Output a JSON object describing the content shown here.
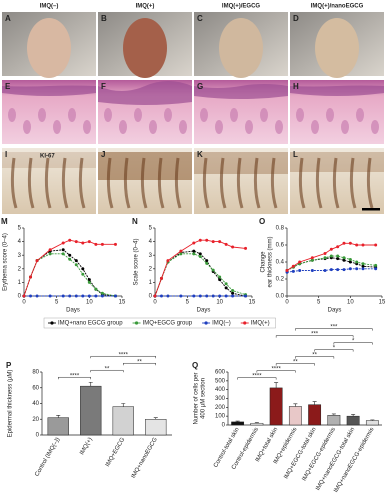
{
  "figure": {
    "column_labels": [
      "IMQ(–)",
      "IMQ(+)",
      "IMQ(+)/EGCG",
      "IMQ(+)/nanoEGCG"
    ],
    "panels": [
      "A",
      "B",
      "C",
      "D",
      "E",
      "F",
      "G",
      "H",
      "I",
      "J",
      "K",
      "L"
    ],
    "stain_label": "KI-67"
  },
  "chart_data": [
    {
      "type": "line",
      "panel": "M",
      "ylabel": [
        "Erythema score (0–4)"
      ],
      "xlabel": "Days",
      "x": [
        0,
        1,
        2,
        4,
        6,
        7,
        8,
        9,
        10,
        11,
        12,
        14
      ],
      "xlim": [
        0,
        15
      ],
      "xticks": [
        0,
        5,
        10,
        15
      ],
      "ylim": [
        0,
        5
      ],
      "yticks": [
        0,
        1,
        2,
        3,
        4,
        5
      ],
      "series": [
        {
          "name": "IMQ+nano EGCG group",
          "color": "#000000",
          "values": [
            0,
            1.4,
            2.6,
            3.3,
            3.4,
            3.0,
            2.6,
            2.0,
            1.2,
            0.5,
            0.1,
            0
          ]
        },
        {
          "name": "IMQ+EGCG group",
          "color": "#3a9a3a",
          "values": [
            0,
            1.4,
            2.6,
            3.1,
            3.1,
            2.7,
            2.3,
            1.6,
            1.0,
            0.5,
            0.2,
            0
          ]
        },
        {
          "name": "IMQ(–)",
          "color": "#1f3fbf",
          "values": [
            0,
            0,
            0,
            0,
            0,
            0,
            0,
            0,
            0,
            0,
            0,
            0
          ]
        },
        {
          "name": "IMQ(+)",
          "color": "#e8202a",
          "values": [
            0,
            1.4,
            2.6,
            3.4,
            3.9,
            4.1,
            4.0,
            3.9,
            4.0,
            3.8,
            3.8,
            3.8
          ]
        }
      ]
    },
    {
      "type": "line",
      "panel": "N",
      "ylabel": [
        "Scale score (0–4)"
      ],
      "xlabel": "Days",
      "x": [
        0,
        1,
        2,
        4,
        6,
        7,
        8,
        9,
        10,
        11,
        12,
        14
      ],
      "xlim": [
        0,
        15
      ],
      "xticks": [
        0,
        5,
        10,
        15
      ],
      "ylim": [
        0,
        5
      ],
      "yticks": [
        0,
        1,
        2,
        3,
        4,
        5
      ],
      "series": [
        {
          "color": "#000000",
          "values": [
            0,
            1.3,
            2.5,
            3.2,
            3.3,
            3.1,
            2.6,
            1.8,
            1.2,
            0.6,
            0.2,
            0
          ]
        },
        {
          "color": "#3a9a3a",
          "values": [
            0,
            1.3,
            2.5,
            3.1,
            3.1,
            2.9,
            2.4,
            1.9,
            1.4,
            0.9,
            0.4,
            0.1
          ]
        },
        {
          "color": "#1f3fbf",
          "values": [
            0,
            0,
            0,
            0,
            0,
            0,
            0,
            0,
            0,
            0,
            0,
            0
          ]
        },
        {
          "color": "#e8202a",
          "values": [
            0,
            1.3,
            2.6,
            3.3,
            3.9,
            4.1,
            4.1,
            4.0,
            4.0,
            3.8,
            3.6,
            3.5
          ]
        }
      ]
    },
    {
      "type": "line",
      "panel": "O",
      "ylabel": [
        "Change",
        "ear thickness (mm)"
      ],
      "xlabel": "Days",
      "x": [
        0,
        1,
        2,
        4,
        6,
        7,
        8,
        9,
        10,
        11,
        12,
        14
      ],
      "xlim": [
        0,
        15
      ],
      "xticks": [
        0,
        5,
        10,
        15
      ],
      "ylim": [
        0,
        0.8
      ],
      "yticks": [
        {
          "value": 0,
          "label": "0.0"
        },
        0.2,
        0.4,
        0.6,
        0.8
      ],
      "series": [
        {
          "color": "#000000",
          "values": [
            0.3,
            0.34,
            0.38,
            0.42,
            0.44,
            0.45,
            0.44,
            0.42,
            0.4,
            0.38,
            0.35,
            0.34
          ]
        },
        {
          "color": "#3a9a3a",
          "values": [
            0.3,
            0.34,
            0.38,
            0.42,
            0.45,
            0.47,
            0.47,
            0.45,
            0.43,
            0.4,
            0.38,
            0.36
          ]
        },
        {
          "color": "#1f3fbf",
          "values": [
            0.28,
            0.29,
            0.3,
            0.3,
            0.3,
            0.31,
            0.31,
            0.31,
            0.32,
            0.32,
            0.32,
            0.32
          ]
        },
        {
          "color": "#e8202a",
          "values": [
            0.3,
            0.35,
            0.4,
            0.45,
            0.5,
            0.55,
            0.58,
            0.62,
            0.62,
            0.6,
            0.6,
            0.6
          ]
        }
      ]
    },
    {
      "type": "bar",
      "panel": "P",
      "ylabel": [
        "Epidermal thickness (µM)"
      ],
      "categories": [
        "Control (IMQ(–))",
        "IMQ(+)",
        "IMQ+EGCG",
        "IMQ+nanoEGCG"
      ],
      "values": [
        22,
        62,
        36,
        20
      ],
      "errors": [
        3,
        5,
        4,
        2
      ],
      "colors": [
        "#9a9a9a",
        "#7a7a7a",
        "#d2d2d2",
        "#e4e4e4"
      ],
      "ylim": [
        0,
        80
      ],
      "yticks": [
        0,
        20,
        40,
        60,
        80
      ],
      "significance": [
        {
          "from": 0,
          "to": 1,
          "label": "****"
        },
        {
          "from": 1,
          "to": 2,
          "label": "**"
        },
        {
          "from": 2,
          "to": 3,
          "label": "**"
        },
        {
          "from": 1,
          "to": 3,
          "label": "****"
        }
      ]
    },
    {
      "type": "bar",
      "panel": "Q",
      "ylabel": [
        "Number of cells per",
        "400 µM section"
      ],
      "categories": [
        "Control-total skin",
        "Control-epidermis",
        "IMQ+total skin",
        "IMQ+epidermis",
        "IMQ+EGCG-total skin",
        "IMQ+EGCG-epidermis",
        "IMQ+nanoEGCG-total skin",
        "IMQ+nanoEGCG-epidermis"
      ],
      "values": [
        35,
        20,
        420,
        210,
        230,
        110,
        100,
        50
      ],
      "errors": [
        10,
        8,
        60,
        30,
        35,
        15,
        20,
        8
      ],
      "colors": [
        "#111111",
        "#ffffff",
        "#8b1a1a",
        "#e8c8c8",
        "#8b1a1a",
        "#b0b0b0",
        "#555555",
        "#e0e0e0"
      ],
      "ylim": [
        0,
        600
      ],
      "yticks": [
        0,
        100,
        200,
        300,
        400,
        500,
        600
      ],
      "significance": [
        {
          "from": 0,
          "to": 2,
          "label": "****"
        },
        {
          "from": 1,
          "to": 3,
          "label": "****"
        },
        {
          "from": 2,
          "to": 4,
          "label": "**"
        },
        {
          "from": 3,
          "to": 5,
          "label": "**"
        },
        {
          "from": 4,
          "to": 6,
          "label": "*"
        },
        {
          "from": 5,
          "to": 7,
          "label": "*"
        },
        {
          "from": 2,
          "to": 6,
          "label": "***"
        },
        {
          "from": 3,
          "to": 7,
          "label": "***"
        }
      ]
    }
  ]
}
